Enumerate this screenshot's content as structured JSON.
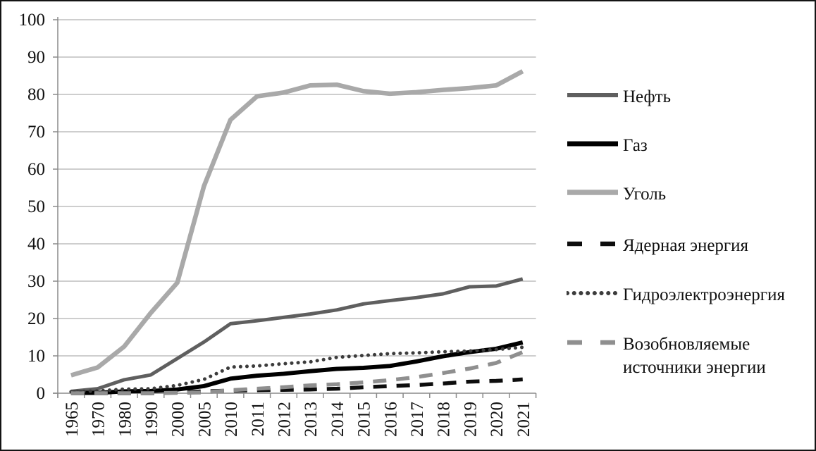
{
  "figure": {
    "background": "#ffffff",
    "border_color": "#141414",
    "text_color": "#111111",
    "grid_color": "#b0b0b0",
    "axis_color": "#8a8a8a"
  },
  "chart_data": {
    "type": "line",
    "title": "",
    "xlabel": "",
    "ylabel": "",
    "ylim": [
      0,
      100
    ],
    "ytick_step": 10,
    "ytick_labels": [
      "0",
      "10",
      "20",
      "30",
      "40",
      "50",
      "60",
      "70",
      "80",
      "90",
      "100"
    ],
    "grid": "horizontal",
    "legend_position": "right",
    "categories": [
      "1965",
      "1970",
      "1980",
      "1990",
      "2000",
      "2005",
      "2010",
      "2011",
      "2012",
      "2013",
      "2014",
      "2015",
      "2016",
      "2017",
      "2018",
      "2019",
      "2020",
      "2021"
    ],
    "series": [
      {
        "key": "oil",
        "name": "Нефть",
        "color": "#5f5f5f",
        "line_style": "solid",
        "values": [
          0.5,
          1.2,
          3.6,
          4.9,
          9.3,
          13.7,
          18.6,
          19.4,
          20.3,
          21.2,
          22.3,
          23.9,
          24.8,
          25.6,
          26.6,
          28.5,
          28.7,
          30.6
        ]
      },
      {
        "key": "gas",
        "name": "Газ",
        "color": "#000000",
        "line_style": "solid",
        "values": [
          0.1,
          0.1,
          0.5,
          0.6,
          1.0,
          1.9,
          3.9,
          4.7,
          5.2,
          5.9,
          6.5,
          6.8,
          7.3,
          8.5,
          9.9,
          11.0,
          11.9,
          13.6
        ]
      },
      {
        "key": "coal",
        "name": "Уголь",
        "color": "#a9a9a9",
        "line_style": "solid",
        "values": [
          4.8,
          6.9,
          12.5,
          21.5,
          29.6,
          55.4,
          73.2,
          79.5,
          80.5,
          82.4,
          82.6,
          80.9,
          80.2,
          80.6,
          81.2,
          81.7,
          82.4,
          86.2
        ]
      },
      {
        "key": "nuclear",
        "name": "Ядерная энергия",
        "color": "#0d0d0d",
        "line_style": "dashed",
        "values": [
          0.0,
          0.0,
          0.0,
          0.0,
          0.2,
          0.5,
          0.7,
          0.8,
          0.9,
          1.0,
          1.2,
          1.6,
          1.9,
          2.2,
          2.6,
          3.1,
          3.3,
          3.7
        ]
      },
      {
        "key": "hydro",
        "name": "Гидроэлектроэнергия",
        "color": "#3c3c3c",
        "line_style": "dotted",
        "values": [
          0.4,
          0.6,
          1.1,
          1.2,
          2.1,
          3.7,
          7.0,
          7.3,
          7.9,
          8.4,
          9.6,
          10.1,
          10.6,
          10.8,
          11.1,
          11.3,
          11.7,
          12.3
        ]
      },
      {
        "key": "renewables",
        "name": "Возобновляемые источники энергии",
        "color": "#8f8f8f",
        "line_style": "dashed",
        "values": [
          0.0,
          0.0,
          0.0,
          0.0,
          0.1,
          0.2,
          0.8,
          1.2,
          1.6,
          2.1,
          2.4,
          2.9,
          3.5,
          4.3,
          5.4,
          6.6,
          8.1,
          11.0
        ]
      }
    ]
  }
}
